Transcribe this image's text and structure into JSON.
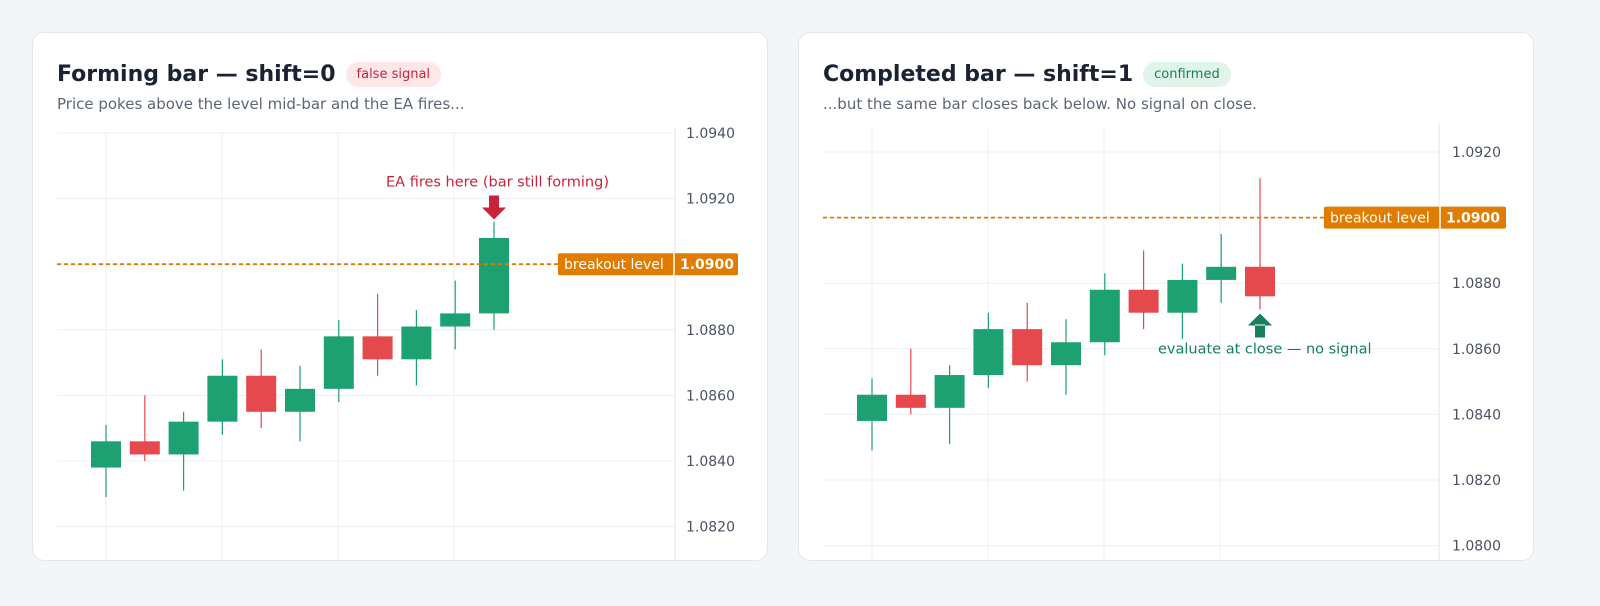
{
  "colors": {
    "up": "#1ea170",
    "down": "#e5484d",
    "level": "#e07c00",
    "signal_bad": "#c9233b",
    "signal_ok": "#17805a",
    "grid": "#eceff2",
    "axis_text": "#4a5262"
  },
  "panels": [
    {
      "title": "Forming bar — shift=0",
      "badge": {
        "text": "false signal",
        "bg": "#fde7e9",
        "fg": "#c9233b"
      },
      "subtitle": "Price pokes above the level mid-bar and the EA fires...",
      "chart_data": {
        "type": "candlestick",
        "y_ticks": [
          "1.0940",
          "1.0920",
          "1.0900",
          "1.0880",
          "1.0860",
          "1.0840",
          "1.0820"
        ],
        "ylim": [
          1.0814,
          1.0945
        ],
        "grid": true,
        "candles": [
          {
            "open": 1.0838,
            "high": 1.0851,
            "low": 1.0829,
            "close": 1.0846
          },
          {
            "open": 1.0846,
            "high": 1.086,
            "low": 1.084,
            "close": 1.0842
          },
          {
            "open": 1.0842,
            "high": 1.0855,
            "low": 1.0831,
            "close": 1.0852
          },
          {
            "open": 1.0852,
            "high": 1.0871,
            "low": 1.0848,
            "close": 1.0866
          },
          {
            "open": 1.0866,
            "high": 1.0874,
            "low": 1.085,
            "close": 1.0855
          },
          {
            "open": 1.0855,
            "high": 1.0869,
            "low": 1.0846,
            "close": 1.0862
          },
          {
            "open": 1.0862,
            "high": 1.0883,
            "low": 1.0858,
            "close": 1.0878
          },
          {
            "open": 1.0878,
            "high": 1.0891,
            "low": 1.0866,
            "close": 1.0871
          },
          {
            "open": 1.0871,
            "high": 1.0886,
            "low": 1.0863,
            "close": 1.0881
          },
          {
            "open": 1.0881,
            "high": 1.0895,
            "low": 1.0874,
            "close": 1.0885
          },
          {
            "open": 1.0885,
            "high": 1.0913,
            "low": 1.088,
            "close": 1.0908
          }
        ],
        "level": {
          "value": 1.09,
          "label": "breakout level",
          "value_text": "1.0900"
        },
        "annotation": {
          "text": "EA fires here (bar still forming)",
          "candle": 10,
          "position": "above",
          "color": "#c9233b"
        }
      }
    },
    {
      "title": "Completed bar — shift=1",
      "badge": {
        "text": "confirmed",
        "bg": "#e0f4ea",
        "fg": "#17805a"
      },
      "subtitle": "...but the same bar closes back below. No signal on close.",
      "chart_data": {
        "type": "candlestick",
        "y_ticks": [
          "1.0920",
          "1.0900",
          "1.0880",
          "1.0860",
          "1.0840",
          "1.0820",
          "1.0800"
        ],
        "ylim": [
          1.08,
          1.0928
        ],
        "grid": true,
        "candles": [
          {
            "open": 1.0838,
            "high": 1.0851,
            "low": 1.0829,
            "close": 1.0846
          },
          {
            "open": 1.0846,
            "high": 1.086,
            "low": 1.084,
            "close": 1.0842
          },
          {
            "open": 1.0842,
            "high": 1.0855,
            "low": 1.0831,
            "close": 1.0852
          },
          {
            "open": 1.0852,
            "high": 1.0871,
            "low": 1.0848,
            "close": 1.0866
          },
          {
            "open": 1.0866,
            "high": 1.0874,
            "low": 1.085,
            "close": 1.0855
          },
          {
            "open": 1.0855,
            "high": 1.0869,
            "low": 1.0846,
            "close": 1.0862
          },
          {
            "open": 1.0862,
            "high": 1.0883,
            "low": 1.0858,
            "close": 1.0878
          },
          {
            "open": 1.0878,
            "high": 1.089,
            "low": 1.0866,
            "close": 1.0871
          },
          {
            "open": 1.0871,
            "high": 1.0886,
            "low": 1.0863,
            "close": 1.0881
          },
          {
            "open": 1.0881,
            "high": 1.0895,
            "low": 1.0874,
            "close": 1.0885
          },
          {
            "open": 1.0885,
            "high": 1.0912,
            "low": 1.0872,
            "close": 1.0876
          }
        ],
        "level": {
          "value": 1.09,
          "label": "breakout level",
          "value_text": "1.0900"
        },
        "annotation": {
          "text": "evaluate at close — no signal",
          "candle": 10,
          "position": "below",
          "color": "#17805a"
        }
      }
    }
  ]
}
